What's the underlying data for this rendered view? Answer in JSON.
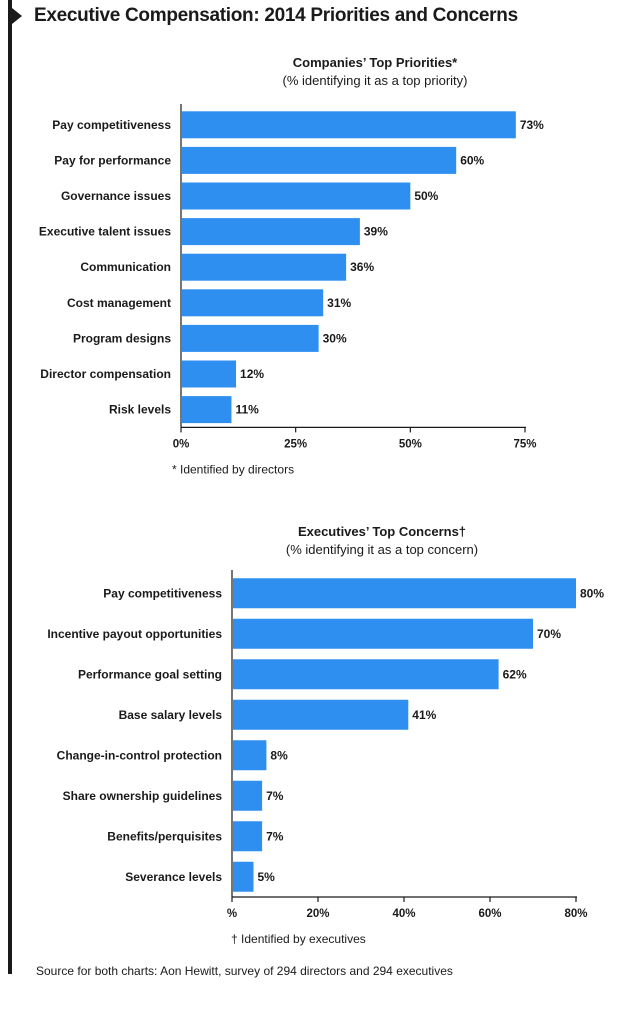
{
  "title": "Executive Compensation: 2014 Priorities and Concerns",
  "source": "Source for both charts: Aon Hewitt, survey of 294 directors and 294 executives",
  "colors": {
    "bar": "#2f8ff0",
    "axis": "#1a1a1a"
  },
  "chart_data": [
    {
      "type": "bar",
      "orientation": "horizontal",
      "title": "Companies’ Top Priorities*",
      "subtitle": "(% identifying it as a top priority)",
      "categories": [
        "Pay competitiveness",
        "Pay for performance",
        "Governance issues",
        "Executive talent issues",
        "Communication",
        "Cost management",
        "Program designs",
        "Director compensation",
        "Risk levels"
      ],
      "values": [
        73,
        60,
        50,
        39,
        36,
        31,
        30,
        12,
        11
      ],
      "value_labels": [
        "73%",
        "60%",
        "50%",
        "39%",
        "36%",
        "31%",
        "30%",
        "12%",
        "11%"
      ],
      "xlim": [
        0,
        75
      ],
      "xticks": [
        0,
        25,
        50,
        75
      ],
      "xtick_labels": [
        "0%",
        "25%",
        "50%",
        "75%"
      ],
      "footnote": "* Identified by directors",
      "grid": false,
      "legend": "none"
    },
    {
      "type": "bar",
      "orientation": "horizontal",
      "title": "Executives’ Top Concerns†",
      "subtitle": "(% identifying it as a top concern)",
      "categories": [
        "Pay competitiveness",
        "Incentive payout opportunities",
        "Performance goal setting",
        "Base salary levels",
        "Change-in-control protection",
        "Share ownership guidelines",
        "Benefits/perquisites",
        "Severance levels"
      ],
      "values": [
        80,
        70,
        62,
        41,
        8,
        7,
        7,
        5
      ],
      "value_labels": [
        "80%",
        "70%",
        "62%",
        "41%",
        "8%",
        "7%",
        "7%",
        "5%"
      ],
      "xlim": [
        0,
        80
      ],
      "xticks": [
        0,
        20,
        40,
        60,
        80
      ],
      "xtick_labels": [
        "%",
        "20%",
        "40%",
        "60%",
        "80%"
      ],
      "footnote": "† Identified by executives",
      "grid": false,
      "legend": "none"
    }
  ]
}
